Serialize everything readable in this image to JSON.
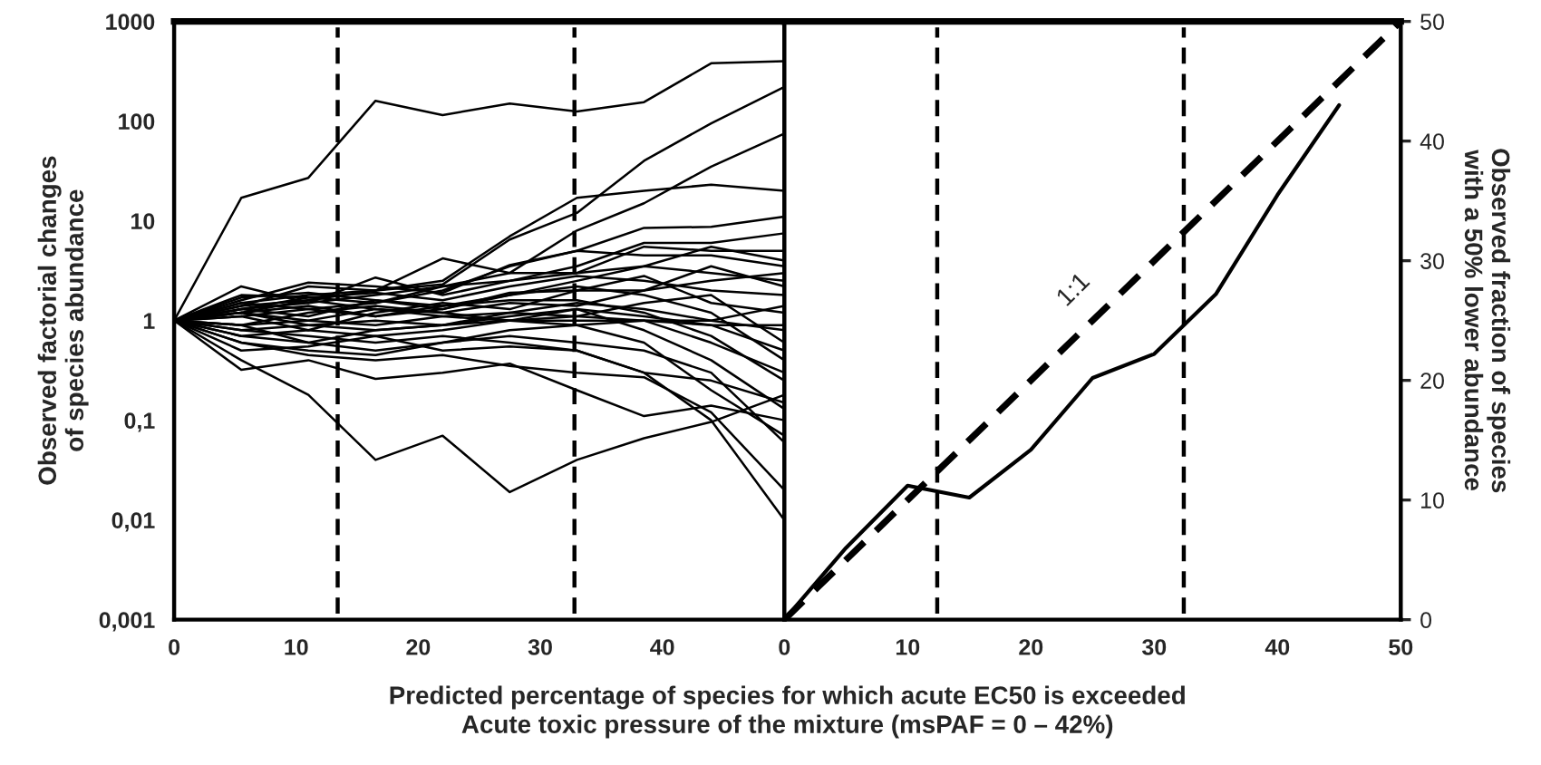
{
  "chart_data": [
    {
      "type": "line",
      "ylabel": "Observed factorial changes\nof species abundance",
      "xlabel": "Predicted percentage of species for which acute EC50 is exceeded\nAcute toxic pressure of the mixture (msPAF = 0 – 42%)",
      "x": [
        0,
        5.5,
        11,
        16.5,
        22,
        27.5,
        33,
        38.5,
        44,
        50
      ],
      "xlim": [
        0,
        50
      ],
      "xticks": [
        0,
        10,
        20,
        30,
        40
      ],
      "ylim": [
        0.001,
        1000
      ],
      "log": "y",
      "yticks": [
        {
          "value": 0.001,
          "label": "0,001"
        },
        {
          "value": 0.01,
          "label": "0,01"
        },
        {
          "value": 0.1,
          "label": "0,1"
        },
        1,
        10,
        100,
        1000
      ],
      "ref_lines": [
        {
          "axis": "x",
          "value": 13.4,
          "line_style": "dashed",
          "color": "#000000"
        },
        {
          "axis": "x",
          "value": 32.8,
          "line_style": "dashed",
          "color": "#000000"
        }
      ],
      "grid": false,
      "legend": false,
      "marker": "none",
      "line_style": "solid",
      "series": [
        {
          "color": "#000000",
          "values": [
            1,
            17,
            27,
            160,
            115,
            150,
            125,
            155,
            380,
            400
          ]
        },
        {
          "color": "#000000",
          "values": [
            1,
            1.5,
            1.8,
            2,
            2.3,
            6.5,
            12,
            40,
            95,
            220
          ]
        },
        {
          "color": "#000000",
          "values": [
            1,
            1.3,
            1.5,
            1.8,
            2.2,
            3,
            8,
            15,
            35,
            75
          ]
        },
        {
          "color": "#000000",
          "values": [
            1,
            1.2,
            1.6,
            2,
            2.5,
            7,
            17,
            20,
            23,
            20
          ]
        },
        {
          "color": "#000000",
          "values": [
            1,
            1.1,
            1.3,
            1.5,
            2,
            3.5,
            5,
            8.5,
            8.7,
            11
          ]
        },
        {
          "color": "#000000",
          "values": [
            1,
            2.2,
            1.5,
            2.7,
            1.8,
            2.5,
            3.5,
            6,
            6,
            7.5
          ]
        },
        {
          "color": "#000000",
          "values": [
            1,
            1.4,
            2.2,
            2,
            4.2,
            3,
            3,
            5.5,
            5,
            5
          ]
        },
        {
          "color": "#000000",
          "values": [
            1,
            1.6,
            2.4,
            2.2,
            1.9,
            3.6,
            5,
            4.5,
            4.5,
            3.5
          ]
        },
        {
          "color": "#000000",
          "values": [
            1,
            1.8,
            1.7,
            1.5,
            2.2,
            2.5,
            3,
            3.5,
            5.5,
            4
          ]
        },
        {
          "color": "#000000",
          "values": [
            1,
            1.3,
            1.1,
            1.6,
            1.3,
            1.8,
            2.5,
            3.5,
            3,
            2.5
          ]
        },
        {
          "color": "#000000",
          "values": [
            1,
            0.9,
            1.2,
            1.4,
            1.2,
            1.5,
            1.4,
            2,
            2.5,
            3
          ]
        },
        {
          "color": "#000000",
          "values": [
            1,
            1.2,
            1,
            0.9,
            1.1,
            1.2,
            1.1,
            1,
            0.9,
            0.9
          ]
        },
        {
          "color": "#000000",
          "values": [
            1,
            0.8,
            0.9,
            1,
            0.9,
            1,
            1,
            1,
            1,
            0.8
          ]
        },
        {
          "color": "#000000",
          "values": [
            1,
            1.1,
            0.8,
            1.2,
            1.5,
            1.3,
            2,
            2.8,
            1.5,
            1.2
          ]
        },
        {
          "color": "#000000",
          "values": [
            1,
            0.7,
            0.8,
            0.7,
            0.8,
            1,
            1.3,
            1.1,
            0.9,
            0.5
          ]
        },
        {
          "color": "#000000",
          "values": [
            1,
            0.6,
            0.5,
            0.45,
            0.6,
            0.8,
            0.9,
            1,
            0.6,
            0.3
          ]
        },
        {
          "color": "#000000",
          "values": [
            1,
            0.5,
            0.55,
            0.7,
            0.5,
            0.55,
            0.5,
            0.3,
            0.25,
            0.15
          ]
        },
        {
          "color": "#000000",
          "values": [
            1,
            0.32,
            0.4,
            0.26,
            0.3,
            0.37,
            0.2,
            0.11,
            0.14,
            0.1
          ]
        },
        {
          "color": "#000000",
          "values": [
            1,
            0.4,
            0.18,
            0.04,
            0.07,
            0.019,
            0.04,
            0.066,
            0.096,
            0.18
          ]
        },
        {
          "color": "#000000",
          "values": [
            1,
            0.6,
            0.45,
            0.4,
            0.45,
            0.35,
            0.3,
            0.27,
            0.12,
            0.02
          ]
        },
        {
          "color": "#000000",
          "values": [
            1,
            0.8,
            0.7,
            0.6,
            0.7,
            0.6,
            0.5,
            0.3,
            0.1,
            0.01
          ]
        },
        {
          "color": "#000000",
          "values": [
            1,
            0.9,
            0.6,
            0.5,
            0.6,
            0.7,
            0.6,
            0.5,
            0.3,
            0.06
          ]
        },
        {
          "color": "#000000",
          "values": [
            1,
            1.2,
            0.9,
            0.8,
            0.9,
            1.1,
            1.3,
            0.8,
            0.4,
            0.13
          ]
        },
        {
          "color": "#000000",
          "values": [
            1,
            1.5,
            1.3,
            1.1,
            1.4,
            1.6,
            1.6,
            1.2,
            0.7,
            0.25
          ]
        },
        {
          "color": "#000000",
          "values": [
            1,
            1.4,
            1.6,
            1.3,
            1.2,
            1,
            1.1,
            1.5,
            1.8,
            0.6
          ]
        },
        {
          "color": "#000000",
          "values": [
            1,
            1.7,
            1.9,
            1.6,
            1.4,
            1.8,
            2.2,
            1.8,
            1.2,
            0.4
          ]
        },
        {
          "color": "#000000",
          "values": [
            1,
            0.9,
            1,
            1.3,
            1.1,
            1,
            0.9,
            0.6,
            0.2,
            0.07
          ]
        },
        {
          "color": "#000000",
          "values": [
            1,
            1.3,
            1.7,
            1.9,
            1.6,
            2.2,
            2.8,
            2.5,
            2,
            1.8
          ]
        },
        {
          "color": "#000000",
          "values": [
            1,
            0.7,
            0.6,
            0.8,
            0.9,
            1.2,
            1.5,
            1.3,
            1,
            1.4
          ]
        },
        {
          "color": "#000000",
          "values": [
            1,
            1.2,
            1.4,
            1.1,
            1.3,
            1.9,
            2,
            2,
            3.5,
            2.2
          ]
        }
      ]
    },
    {
      "type": "line",
      "ylabel": "Observed fraction of species\nwith a 50% lower abundance",
      "xlim": [
        0,
        50
      ],
      "xticks": [
        0,
        10,
        20,
        30,
        40,
        50
      ],
      "ylim": [
        0,
        50
      ],
      "yticks": [
        0,
        10,
        20,
        30,
        40,
        50
      ],
      "ref_lines": [
        {
          "axis": "x",
          "value": 12.4,
          "line_style": "dashed",
          "color": "#000000"
        },
        {
          "axis": "x",
          "value": 32.4,
          "line_style": "dashed",
          "color": "#000000"
        }
      ],
      "annotations": [
        "1:1"
      ],
      "grid": false,
      "legend": false,
      "marker": "none",
      "series": [
        {
          "color": "#000000",
          "line_style": "solid",
          "x": [
            0,
            5,
            10,
            15,
            20,
            25,
            30,
            35,
            40,
            45
          ],
          "values": [
            0,
            6,
            11.2,
            10.2,
            14.2,
            20.2,
            22.2,
            27.2,
            35.5,
            43
          ]
        },
        {
          "color": "#000000",
          "line_style": "dashed",
          "x": [
            0,
            50
          ],
          "values": [
            0,
            50
          ]
        }
      ]
    }
  ]
}
